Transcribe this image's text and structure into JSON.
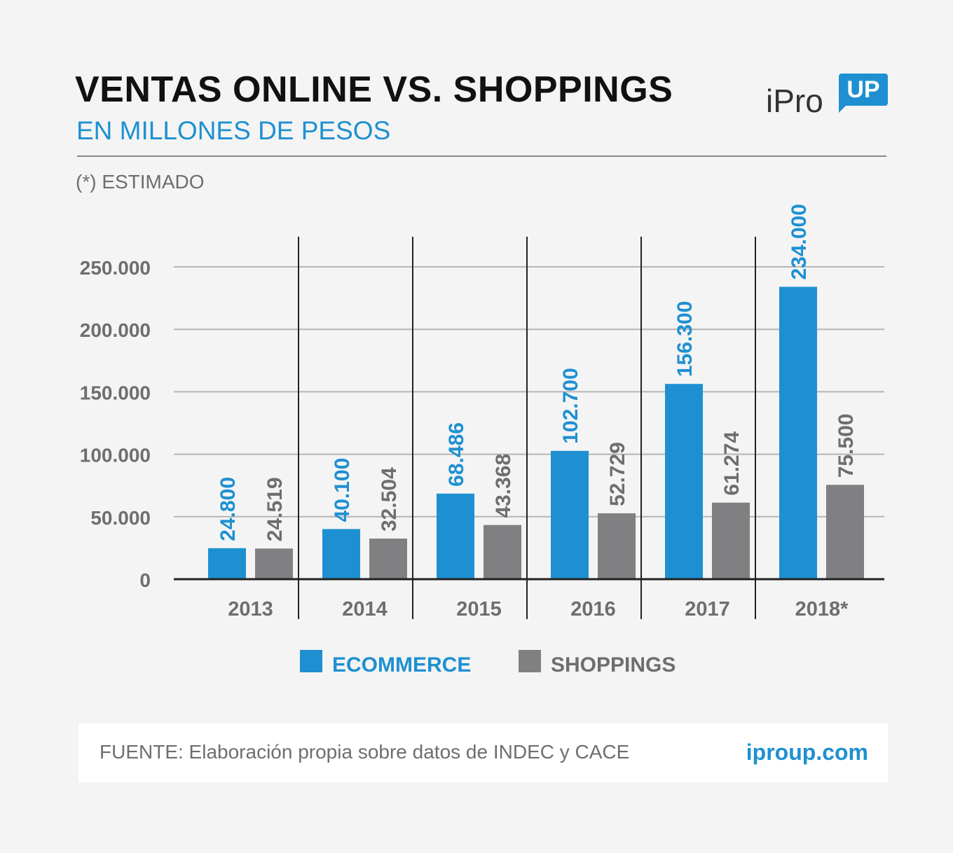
{
  "header": {
    "title": "VENTAS ONLINE VS. SHOPPINGS",
    "subtitle": "EN MILLONES DE PESOS",
    "note": "(*) ESTIMADO"
  },
  "logo": {
    "text": "iPro",
    "badge": "UP"
  },
  "colors": {
    "ecommerce": "#1e90d2",
    "shoppings": "#808082",
    "accent": "#1e90d2"
  },
  "chart_data": {
    "type": "bar",
    "categories": [
      "2013",
      "2014",
      "2015",
      "2016",
      "2017",
      "2018*"
    ],
    "series": [
      {
        "name": "ECOMMERCE",
        "values": [
          24800,
          40100,
          68486,
          102700,
          156300,
          234000
        ],
        "labels": [
          "24.800",
          "40.100",
          "68.486",
          "102.700",
          "156.300",
          "234.000"
        ]
      },
      {
        "name": "SHOPPINGS",
        "values": [
          24519,
          32504,
          43368,
          52729,
          61274,
          75500
        ],
        "labels": [
          "24.519",
          "32.504",
          "43.368",
          "52.729",
          "61.274",
          "75.500"
        ]
      }
    ],
    "ylim": [
      0,
      250000
    ],
    "yticks": [
      0,
      50000,
      100000,
      150000,
      200000,
      250000
    ],
    "ytick_labels": [
      "0",
      "50.000",
      "100.000",
      "150.000",
      "200.000",
      "250.000"
    ],
    "grid": true,
    "legend": "bottom"
  },
  "footer": {
    "source": "FUENTE: Elaboración propia sobre datos de INDEC y CACE",
    "site": "iproup.com"
  }
}
